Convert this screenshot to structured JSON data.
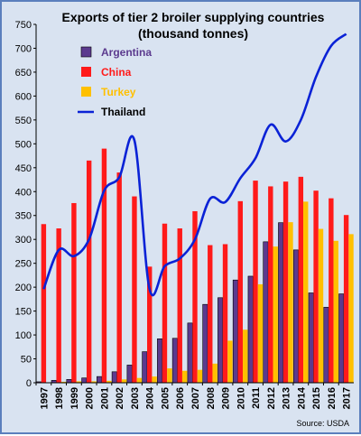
{
  "chart_data": {
    "type": "bar",
    "title": "Exports of tier 2 broiler supplying countries",
    "subtitle": "(thousand tonnes)",
    "source": "Source: USDA",
    "ylim": [
      0,
      750
    ],
    "yticks": [
      0,
      50,
      100,
      150,
      200,
      250,
      300,
      350,
      400,
      450,
      500,
      550,
      600,
      650,
      700,
      750
    ],
    "categories": [
      "1997",
      "1998",
      "1999",
      "2000",
      "2001",
      "2002",
      "2003",
      "2004",
      "2005",
      "2006",
      "2007",
      "2008",
      "2009",
      "2010",
      "2011",
      "2012",
      "2013",
      "2014",
      "2015",
      "2016",
      "2017"
    ],
    "legend_position": "top-left",
    "grid": false,
    "series": [
      {
        "name": "Argentina",
        "type": "bar",
        "color": "#5b3a8e",
        "values": [
          2,
          5,
          7,
          10,
          13,
          23,
          37,
          65,
          92,
          93,
          125,
          164,
          178,
          215,
          223,
          295,
          335,
          278,
          188,
          158,
          186
        ]
      },
      {
        "name": "China",
        "type": "bar",
        "color": "#ff1a1a",
        "values": [
          332,
          323,
          376,
          465,
          490,
          440,
          390,
          243,
          333,
          323,
          359,
          288,
          290,
          380,
          423,
          411,
          421,
          431,
          402,
          386,
          351
        ]
      },
      {
        "name": "Turkey",
        "type": "bar",
        "color": "#ffc000",
        "values": [
          0,
          2,
          3,
          3,
          4,
          7,
          10,
          13,
          30,
          25,
          27,
          40,
          88,
          111,
          206,
          285,
          336,
          379,
          322,
          297,
          311
        ]
      },
      {
        "name": "Thailand",
        "type": "line",
        "color": "#0a22d6",
        "values": [
          196,
          278,
          265,
          300,
          402,
          430,
          507,
          196,
          244,
          260,
          300,
          385,
          378,
          428,
          470,
          540,
          505,
          550,
          640,
          705,
          730
        ]
      }
    ]
  }
}
